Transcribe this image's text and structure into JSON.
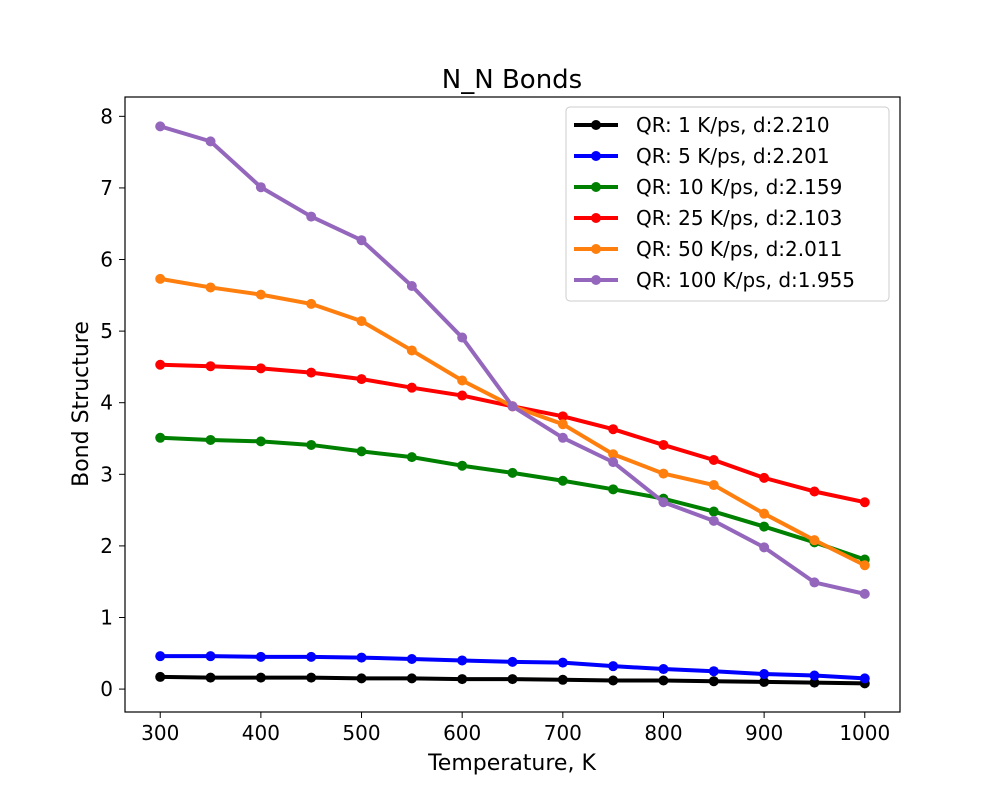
{
  "chart_data": {
    "type": "line",
    "title": "N_N Bonds",
    "xlabel": "Temperature, K",
    "ylabel": "Bond Structure",
    "xlim": [
      265,
      1035
    ],
    "ylim": [
      -0.32,
      8.27
    ],
    "xticks": [
      300,
      400,
      500,
      600,
      700,
      800,
      900,
      1000
    ],
    "yticks": [
      0,
      1,
      2,
      3,
      4,
      5,
      6,
      7,
      8
    ],
    "legend_position": "top-right",
    "x": [
      300,
      350,
      400,
      450,
      500,
      550,
      600,
      650,
      700,
      750,
      800,
      850,
      900,
      950,
      1000
    ],
    "series": [
      {
        "name": "QR: 1 K/ps, d:2.210",
        "color": "#000000",
        "values": [
          0.17,
          0.16,
          0.16,
          0.16,
          0.15,
          0.15,
          0.14,
          0.14,
          0.13,
          0.12,
          0.12,
          0.11,
          0.1,
          0.09,
          0.08
        ]
      },
      {
        "name": "QR: 5 K/ps, d:2.201",
        "color": "#0000ff",
        "values": [
          0.46,
          0.46,
          0.45,
          0.45,
          0.44,
          0.42,
          0.4,
          0.38,
          0.37,
          0.32,
          0.28,
          0.25,
          0.21,
          0.19,
          0.15
        ]
      },
      {
        "name": "QR: 10 K/ps, d:2.159",
        "color": "#008000",
        "values": [
          3.51,
          3.48,
          3.46,
          3.41,
          3.32,
          3.24,
          3.12,
          3.02,
          2.91,
          2.79,
          2.66,
          2.48,
          2.27,
          2.05,
          1.81
        ]
      },
      {
        "name": "QR: 25 K/ps, d:2.103",
        "color": "#ff0000",
        "values": [
          4.53,
          4.51,
          4.48,
          4.42,
          4.33,
          4.21,
          4.1,
          3.95,
          3.81,
          3.63,
          3.41,
          3.2,
          2.95,
          2.76,
          2.61
        ]
      },
      {
        "name": "QR: 50 K/ps, d:2.011",
        "color": "#ff7f0e",
        "values": [
          5.73,
          5.61,
          5.51,
          5.38,
          5.14,
          4.73,
          4.31,
          3.95,
          3.7,
          3.28,
          3.01,
          2.85,
          2.45,
          2.08,
          1.73
        ]
      },
      {
        "name": "QR: 100 K/ps, d:1.955",
        "color": "#9467bd",
        "values": [
          7.86,
          7.65,
          7.01,
          6.6,
          6.27,
          5.63,
          4.91,
          3.95,
          3.51,
          3.17,
          2.61,
          2.35,
          1.98,
          1.49,
          1.33
        ]
      }
    ]
  }
}
